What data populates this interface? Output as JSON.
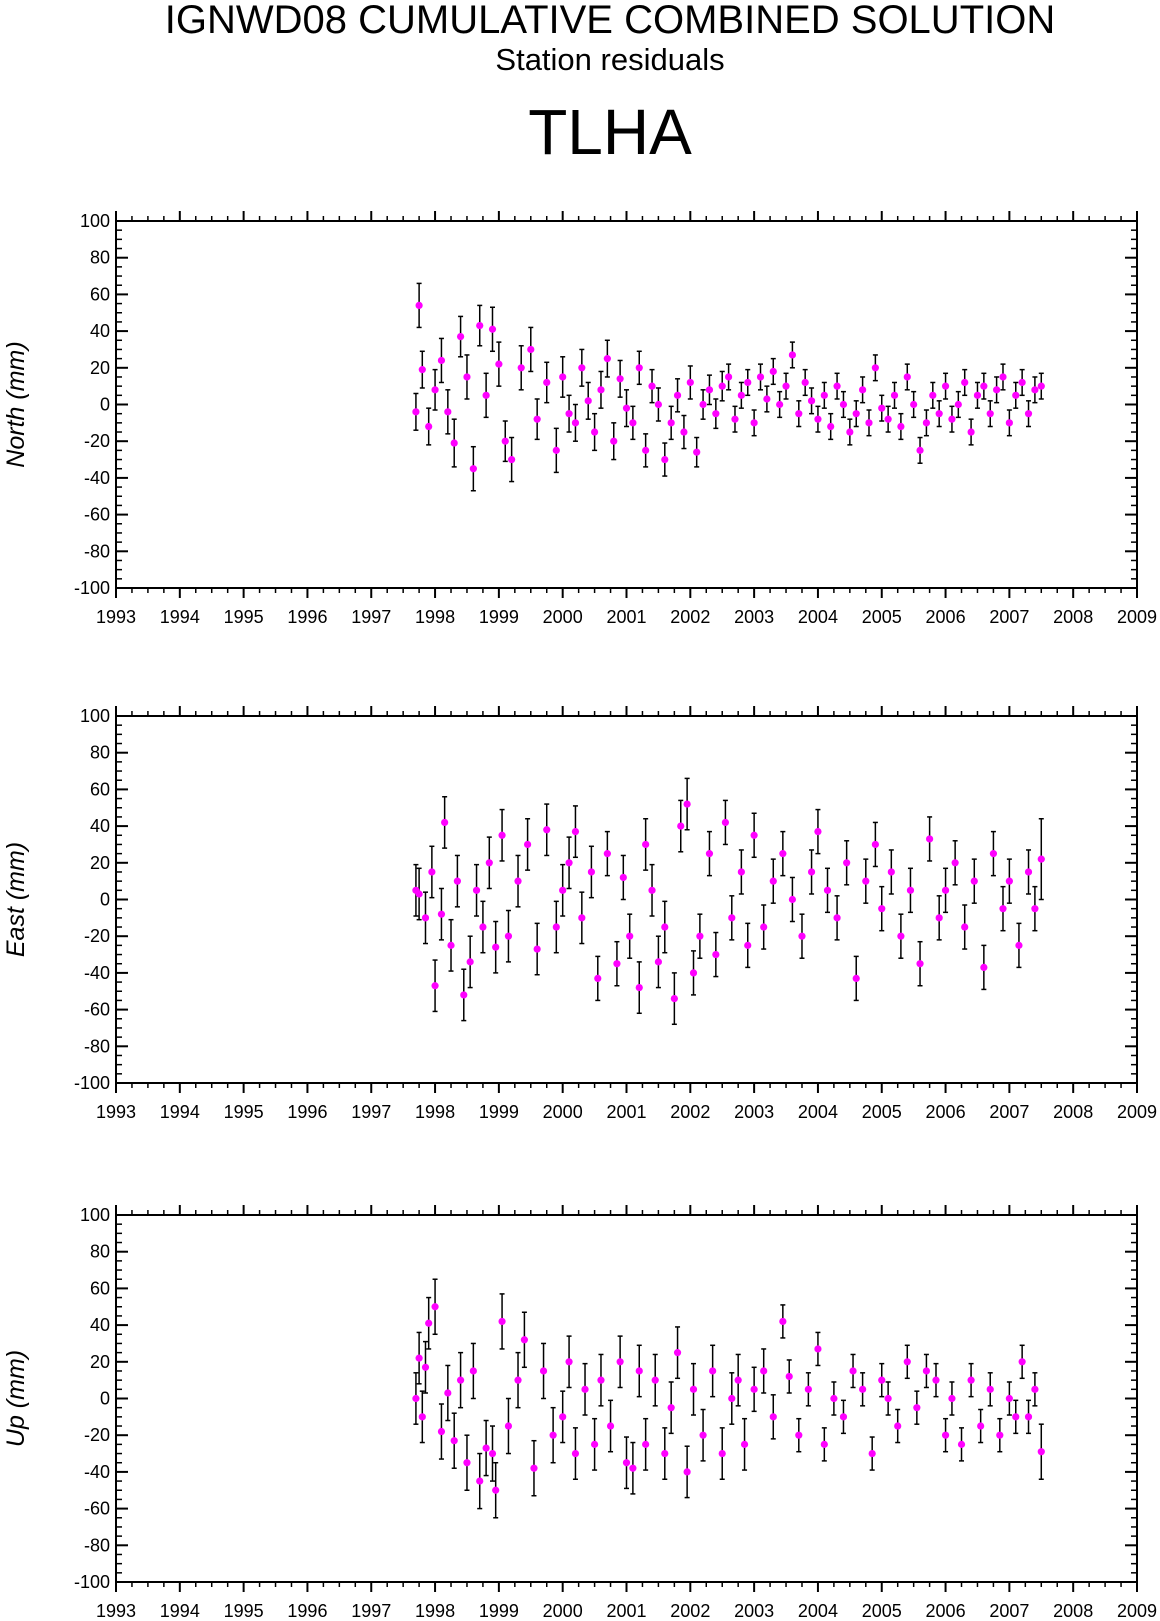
{
  "header": {
    "title": "IGNWD08 CUMULATIVE COMBINED SOLUTION",
    "subtitle": "Station residuals",
    "station": "TLHA"
  },
  "colors": {
    "point": "#ff00ff",
    "errorbar": "#000000",
    "axis": "#000000"
  },
  "chart_data": [
    {
      "type": "scatter",
      "ylabel": "North (mm)",
      "xlim": [
        1993,
        2009
      ],
      "ylim": [
        -100,
        100
      ],
      "x_ticks": [
        "1993",
        "1994",
        "1995",
        "1996",
        "1997",
        "1998",
        "1999",
        "2000",
        "2001",
        "2002",
        "2003",
        "2004",
        "2005",
        "2006",
        "2007",
        "2008",
        "2009"
      ],
      "y_ticks": [
        "100",
        "80",
        "60",
        "40",
        "20",
        "0",
        "-20",
        "-40",
        "-60",
        "-80",
        "-100"
      ],
      "error_bars": true,
      "series": [
        {
          "x": [
            1997.7,
            1997.75,
            1997.8,
            1997.9,
            1998.0,
            1998.1,
            1998.2,
            1998.3,
            1998.4,
            1998.5,
            1998.6,
            1998.7,
            1998.8,
            1998.9,
            1999.0,
            1999.1,
            1999.2,
            1999.35,
            1999.5,
            1999.6,
            1999.75,
            1999.9,
            2000.0,
            2000.1,
            2000.2,
            2000.3,
            2000.4,
            2000.5,
            2000.6,
            2000.7,
            2000.8,
            2000.9,
            2001.0,
            2001.1,
            2001.2,
            2001.3,
            2001.4,
            2001.5,
            2001.6,
            2001.7,
            2001.8,
            2001.9,
            2002.0,
            2002.1,
            2002.2,
            2002.3,
            2002.4,
            2002.5,
            2002.6,
            2002.7,
            2002.8,
            2002.9,
            2003.0,
            2003.1,
            2003.2,
            2003.3,
            2003.4,
            2003.5,
            2003.6,
            2003.7,
            2003.8,
            2003.9,
            2004.0,
            2004.1,
            2004.2,
            2004.3,
            2004.4,
            2004.5,
            2004.6,
            2004.7,
            2004.8,
            2004.9,
            2005.0,
            2005.1,
            2005.2,
            2005.3,
            2005.4,
            2005.5,
            2005.6,
            2005.7,
            2005.8,
            2005.9,
            2006.0,
            2006.1,
            2006.2,
            2006.3,
            2006.4,
            2006.5,
            2006.6,
            2006.7,
            2006.8,
            2006.9,
            2007.0,
            2007.1,
            2007.2,
            2007.3,
            2007.4,
            2007.5
          ],
          "y": [
            -4,
            54,
            19,
            -12,
            8,
            24,
            -4,
            -21,
            37,
            15,
            -35,
            43,
            5,
            41,
            22,
            -20,
            -30,
            20,
            30,
            -8,
            12,
            -25,
            15,
            -5,
            -10,
            20,
            2,
            -15,
            8,
            25,
            -20,
            14,
            -2,
            -10,
            20,
            -25,
            10,
            0,
            -30,
            -10,
            5,
            -15,
            12,
            -26,
            0,
            8,
            -5,
            10,
            15,
            -8,
            5,
            12,
            -10,
            15,
            3,
            18,
            0,
            10,
            27,
            -5,
            12,
            2,
            -8,
            5,
            -12,
            10,
            0,
            -15,
            -5,
            8,
            -10,
            20,
            -2,
            -8,
            5,
            -12,
            15,
            0,
            -25,
            -10,
            5,
            -5,
            10,
            -8,
            0,
            12,
            -15,
            5,
            10,
            -5,
            8,
            15,
            -10,
            5,
            12,
            -5,
            8,
            10
          ],
          "err": [
            10,
            12,
            10,
            10,
            11,
            12,
            12,
            13,
            11,
            12,
            12,
            11,
            12,
            12,
            12,
            11,
            12,
            12,
            12,
            11,
            11,
            12,
            11,
            10,
            10,
            10,
            10,
            10,
            10,
            10,
            10,
            10,
            10,
            9,
            9,
            9,
            9,
            9,
            9,
            9,
            9,
            9,
            9,
            8,
            8,
            8,
            8,
            8,
            7,
            7,
            7,
            7,
            7,
            7,
            7,
            7,
            7,
            7,
            7,
            7,
            7,
            7,
            7,
            7,
            7,
            7,
            7,
            7,
            7,
            7,
            7,
            7,
            7,
            7,
            7,
            7,
            7,
            7,
            7,
            7,
            7,
            7,
            7,
            7,
            7,
            7,
            7,
            7,
            7,
            7,
            7,
            7,
            7,
            7,
            7,
            7,
            7,
            7
          ]
        }
      ]
    },
    {
      "type": "scatter",
      "ylabel": "East (mm)",
      "xlim": [
        1993,
        2009
      ],
      "ylim": [
        -100,
        100
      ],
      "x_ticks": [
        "1993",
        "1994",
        "1995",
        "1996",
        "1997",
        "1998",
        "1999",
        "2000",
        "2001",
        "2002",
        "2003",
        "2004",
        "2005",
        "2006",
        "2007",
        "2008",
        "2009"
      ],
      "y_ticks": [
        "100",
        "80",
        "60",
        "40",
        "20",
        "0",
        "-20",
        "-40",
        "-60",
        "-80",
        "-100"
      ],
      "error_bars": true,
      "series": [
        {
          "x": [
            1997.7,
            1997.75,
            1997.85,
            1997.95,
            1998.0,
            1998.1,
            1998.15,
            1998.25,
            1998.35,
            1998.45,
            1998.55,
            1998.65,
            1998.75,
            1998.85,
            1998.95,
            1999.05,
            1999.15,
            1999.3,
            1999.45,
            1999.6,
            1999.75,
            1999.9,
            2000.0,
            2000.1,
            2000.2,
            2000.3,
            2000.45,
            2000.55,
            2000.7,
            2000.85,
            2000.95,
            2001.05,
            2001.2,
            2001.3,
            2001.4,
            2001.5,
            2001.6,
            2001.75,
            2001.85,
            2001.95,
            2002.05,
            2002.15,
            2002.3,
            2002.4,
            2002.55,
            2002.65,
            2002.8,
            2002.9,
            2003.0,
            2003.15,
            2003.3,
            2003.45,
            2003.6,
            2003.75,
            2003.9,
            2004.0,
            2004.15,
            2004.3,
            2004.45,
            2004.6,
            2004.75,
            2004.9,
            2005.0,
            2005.15,
            2005.3,
            2005.45,
            2005.6,
            2005.75,
            2005.9,
            2006.0,
            2006.15,
            2006.3,
            2006.45,
            2006.6,
            2006.75,
            2006.9,
            2007.0,
            2007.15,
            2007.3,
            2007.4,
            2007.5
          ],
          "y": [
            5,
            3,
            -10,
            15,
            -47,
            -8,
            42,
            -25,
            10,
            -52,
            -34,
            5,
            -15,
            20,
            -26,
            35,
            -20,
            10,
            30,
            -27,
            38,
            -15,
            5,
            20,
            37,
            -10,
            15,
            -43,
            25,
            -35,
            12,
            -20,
            -48,
            30,
            5,
            -34,
            -15,
            -54,
            40,
            52,
            -40,
            -20,
            25,
            -30,
            42,
            -10,
            15,
            -25,
            35,
            -15,
            10,
            25,
            0,
            -20,
            15,
            37,
            5,
            -10,
            20,
            -43,
            10,
            30,
            -5,
            15,
            -20,
            5,
            -35,
            33,
            -10,
            5,
            20,
            -15,
            10,
            -37,
            25,
            -5,
            10,
            -25,
            15,
            -5,
            22
          ],
          "err": [
            14,
            14,
            14,
            14,
            14,
            14,
            14,
            14,
            14,
            14,
            14,
            14,
            14,
            14,
            14,
            14,
            14,
            14,
            14,
            14,
            14,
            14,
            14,
            14,
            14,
            14,
            14,
            12,
            12,
            12,
            12,
            12,
            14,
            14,
            14,
            14,
            14,
            14,
            14,
            14,
            12,
            12,
            12,
            12,
            12,
            12,
            12,
            12,
            12,
            12,
            12,
            12,
            12,
            12,
            12,
            12,
            12,
            12,
            12,
            12,
            12,
            12,
            12,
            12,
            12,
            12,
            12,
            12,
            12,
            12,
            12,
            12,
            12,
            12,
            12,
            12,
            12,
            12,
            12,
            12,
            22
          ]
        }
      ]
    },
    {
      "type": "scatter",
      "ylabel": "Up (mm)",
      "xlim": [
        1993,
        2009
      ],
      "ylim": [
        -100,
        100
      ],
      "x_ticks": [
        "1993",
        "1994",
        "1995",
        "1996",
        "1997",
        "1998",
        "1999",
        "2000",
        "2001",
        "2002",
        "2003",
        "2004",
        "2005",
        "2006",
        "2007",
        "2008",
        "2009"
      ],
      "y_ticks": [
        "100",
        "80",
        "60",
        "40",
        "20",
        "0",
        "-20",
        "-40",
        "-60",
        "-80",
        "-100"
      ],
      "error_bars": true,
      "series": [
        {
          "x": [
            1997.7,
            1997.75,
            1997.8,
            1997.85,
            1997.9,
            1998.0,
            1998.1,
            1998.2,
            1998.3,
            1998.4,
            1998.5,
            1998.6,
            1998.7,
            1998.8,
            1998.9,
            1998.95,
            1999.05,
            1999.15,
            1999.3,
            1999.4,
            1999.55,
            1999.7,
            1999.85,
            2000.0,
            2000.1,
            2000.2,
            2000.35,
            2000.5,
            2000.6,
            2000.75,
            2000.9,
            2001.0,
            2001.1,
            2001.2,
            2001.3,
            2001.45,
            2001.6,
            2001.7,
            2001.8,
            2001.95,
            2002.05,
            2002.2,
            2002.35,
            2002.5,
            2002.65,
            2002.75,
            2002.85,
            2003.0,
            2003.15,
            2003.3,
            2003.45,
            2003.55,
            2003.7,
            2003.85,
            2004.0,
            2004.1,
            2004.25,
            2004.4,
            2004.55,
            2004.7,
            2004.85,
            2005.0,
            2005.1,
            2005.25,
            2005.4,
            2005.55,
            2005.7,
            2005.85,
            2006.0,
            2006.1,
            2006.25,
            2006.4,
            2006.55,
            2006.7,
            2006.85,
            2007.0,
            2007.1,
            2007.2,
            2007.3,
            2007.4,
            2007.5
          ],
          "y": [
            0,
            22,
            -10,
            17,
            41,
            50,
            -18,
            3,
            -23,
            10,
            -35,
            15,
            -45,
            -27,
            -30,
            -50,
            42,
            -15,
            10,
            32,
            -38,
            15,
            -20,
            -10,
            20,
            -30,
            5,
            -25,
            10,
            -15,
            20,
            -35,
            -38,
            15,
            -25,
            10,
            -30,
            -5,
            25,
            -40,
            5,
            -20,
            15,
            -30,
            0,
            10,
            -25,
            5,
            15,
            -10,
            42,
            12,
            -20,
            5,
            27,
            -25,
            0,
            -10,
            15,
            5,
            -30,
            10,
            0,
            -15,
            20,
            -5,
            15,
            10,
            -20,
            0,
            -25,
            10,
            -15,
            5,
            -20,
            0,
            -10,
            20,
            -10,
            5,
            -29
          ],
          "err": [
            14,
            14,
            14,
            14,
            14,
            15,
            15,
            15,
            15,
            15,
            15,
            15,
            15,
            15,
            15,
            15,
            15,
            15,
            15,
            15,
            15,
            15,
            15,
            14,
            14,
            14,
            14,
            14,
            14,
            14,
            14,
            14,
            14,
            14,
            14,
            14,
            14,
            14,
            14,
            14,
            14,
            14,
            14,
            14,
            14,
            14,
            14,
            12,
            12,
            12,
            9,
            9,
            9,
            9,
            9,
            9,
            9,
            9,
            9,
            9,
            9,
            9,
            9,
            9,
            9,
            9,
            9,
            9,
            9,
            9,
            9,
            9,
            9,
            9,
            9,
            9,
            9,
            9,
            9,
            9,
            15
          ]
        }
      ]
    }
  ]
}
